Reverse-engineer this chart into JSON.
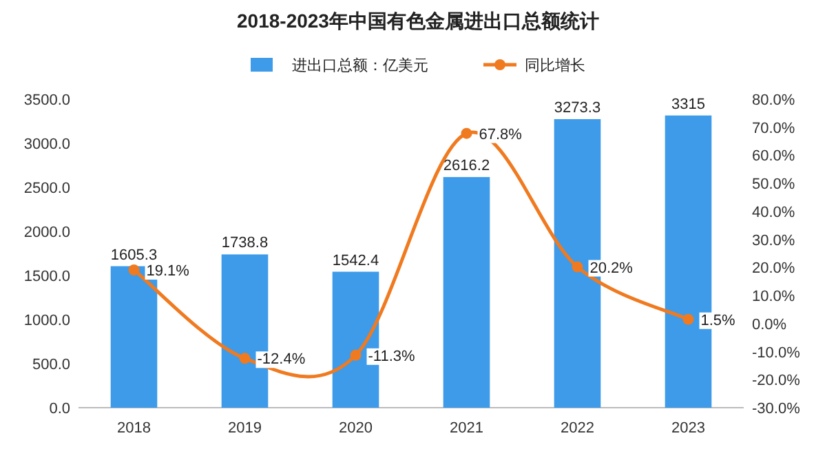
{
  "chart_data": {
    "type": "bar",
    "title": "2018-2023年中国有色金属进出口总额统计",
    "categories": [
      "2018",
      "2019",
      "2020",
      "2021",
      "2022",
      "2023"
    ],
    "series": [
      {
        "name": "进出口总额：亿美元",
        "color": "#3d9be9",
        "values": [
          1605.3,
          1738.8,
          1542.4,
          2616.2,
          3273.3,
          3315
        ],
        "value_labels": [
          "1605.3",
          "1738.8",
          "1542.4",
          "2616.2",
          "3273.3",
          "3315"
        ]
      },
      {
        "name": "同比增长",
        "type": "line",
        "axis": "y2",
        "color": "#f07a20",
        "marker": "circle",
        "values": [
          19.1,
          -12.4,
          -11.3,
          67.8,
          20.2,
          1.5
        ],
        "value_labels": [
          "19.1%",
          "-12.4%",
          "-11.3%",
          "67.8%",
          "20.2%",
          "1.5%"
        ]
      }
    ],
    "ylim": [
      0,
      3500
    ],
    "yticks": [
      {
        "value": 0,
        "label": "0.0"
      },
      {
        "value": 500,
        "label": "500.0"
      },
      {
        "value": 1000,
        "label": "1000.0"
      },
      {
        "value": 1500,
        "label": "1500.0"
      },
      {
        "value": 2000,
        "label": "2000.0"
      },
      {
        "value": 2500,
        "label": "2500.0"
      },
      {
        "value": 3000,
        "label": "3000.0"
      },
      {
        "value": 3500,
        "label": "3500.0"
      }
    ],
    "y2lim": [
      -30,
      80
    ],
    "y2ticks": [
      {
        "value": -30,
        "label": "-30.0%"
      },
      {
        "value": -20,
        "label": "-20.0%"
      },
      {
        "value": -10,
        "label": "-10.0%"
      },
      {
        "value": 0,
        "label": "0.0%"
      },
      {
        "value": 10,
        "label": "10.0%"
      },
      {
        "value": 20,
        "label": "20.0%"
      },
      {
        "value": 30,
        "label": "30.0%"
      },
      {
        "value": 40,
        "label": "40.0%"
      },
      {
        "value": 50,
        "label": "50.0%"
      },
      {
        "value": 60,
        "label": "60.0%"
      },
      {
        "value": 70,
        "label": "70.0%"
      },
      {
        "value": 80,
        "label": "80.0%"
      }
    ],
    "legend": "top",
    "grid": false
  }
}
